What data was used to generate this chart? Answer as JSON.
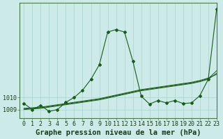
{
  "title": "Graphe pression niveau de la mer (hPa)",
  "bg_color": "#cceae8",
  "grid_color": "#aad4d0",
  "line_color": "#1a5c1a",
  "marker_color": "#1a5c1a",
  "xlim": [
    -0.5,
    23
  ],
  "ylim": [
    1008.3,
    1017.8
  ],
  "yticks": [
    1009,
    1010
  ],
  "xticks": [
    0,
    1,
    2,
    3,
    4,
    5,
    6,
    7,
    8,
    9,
    10,
    11,
    12,
    13,
    14,
    15,
    16,
    17,
    18,
    19,
    20,
    21,
    22,
    23
  ],
  "s1_x": [
    0,
    1,
    2,
    3,
    4,
    5,
    6,
    7,
    8,
    9,
    10,
    11,
    12,
    13,
    14,
    15,
    16,
    17,
    18,
    19,
    20,
    21,
    22,
    23
  ],
  "s1_y": [
    1009.5,
    1009.0,
    1009.35,
    1008.85,
    1009.0,
    1009.6,
    1010.0,
    1010.6,
    1011.5,
    1012.7,
    1015.4,
    1015.6,
    1015.4,
    1013.0,
    1010.1,
    1009.45,
    1009.75,
    1009.55,
    1009.75,
    1009.5,
    1009.55,
    1010.15,
    1011.5,
    1017.3
  ],
  "s2_x": [
    0,
    1,
    2,
    3,
    4,
    5,
    6,
    7,
    8,
    9,
    10,
    11,
    12,
    13,
    14,
    15,
    16,
    17,
    18,
    19,
    20,
    21,
    22,
    23
  ],
  "s2_y": [
    1009.0,
    1009.05,
    1009.1,
    1009.2,
    1009.3,
    1009.4,
    1009.5,
    1009.6,
    1009.7,
    1009.8,
    1009.95,
    1010.1,
    1010.25,
    1010.4,
    1010.55,
    1010.65,
    1010.75,
    1010.85,
    1010.95,
    1011.05,
    1011.15,
    1011.3,
    1011.5,
    1012.0
  ],
  "s3_x": [
    0,
    1,
    2,
    3,
    4,
    5,
    6,
    7,
    8,
    9,
    10,
    11,
    12,
    13,
    14,
    15,
    16,
    17,
    18,
    19,
    20,
    21,
    22,
    23
  ],
  "s3_y": [
    1009.05,
    1009.1,
    1009.15,
    1009.25,
    1009.35,
    1009.45,
    1009.55,
    1009.65,
    1009.75,
    1009.85,
    1010.0,
    1010.15,
    1010.3,
    1010.45,
    1010.6,
    1010.7,
    1010.8,
    1010.9,
    1011.0,
    1011.1,
    1011.2,
    1011.35,
    1011.55,
    1012.2
  ],
  "s4_x": [
    0,
    1,
    2,
    3,
    4,
    5,
    6,
    7,
    8,
    9,
    10,
    11,
    12,
    13,
    14,
    15,
    16,
    17,
    18,
    19,
    20,
    21,
    22,
    23
  ],
  "s4_y": [
    1009.1,
    1009.15,
    1009.2,
    1009.3,
    1009.4,
    1009.5,
    1009.6,
    1009.7,
    1009.8,
    1009.9,
    1010.05,
    1010.2,
    1010.35,
    1010.5,
    1010.65,
    1010.75,
    1010.85,
    1010.95,
    1011.05,
    1011.15,
    1011.25,
    1011.4,
    1011.6,
    1011.9
  ],
  "tick_fontsize": 6.0,
  "label_fontsize": 7.5
}
